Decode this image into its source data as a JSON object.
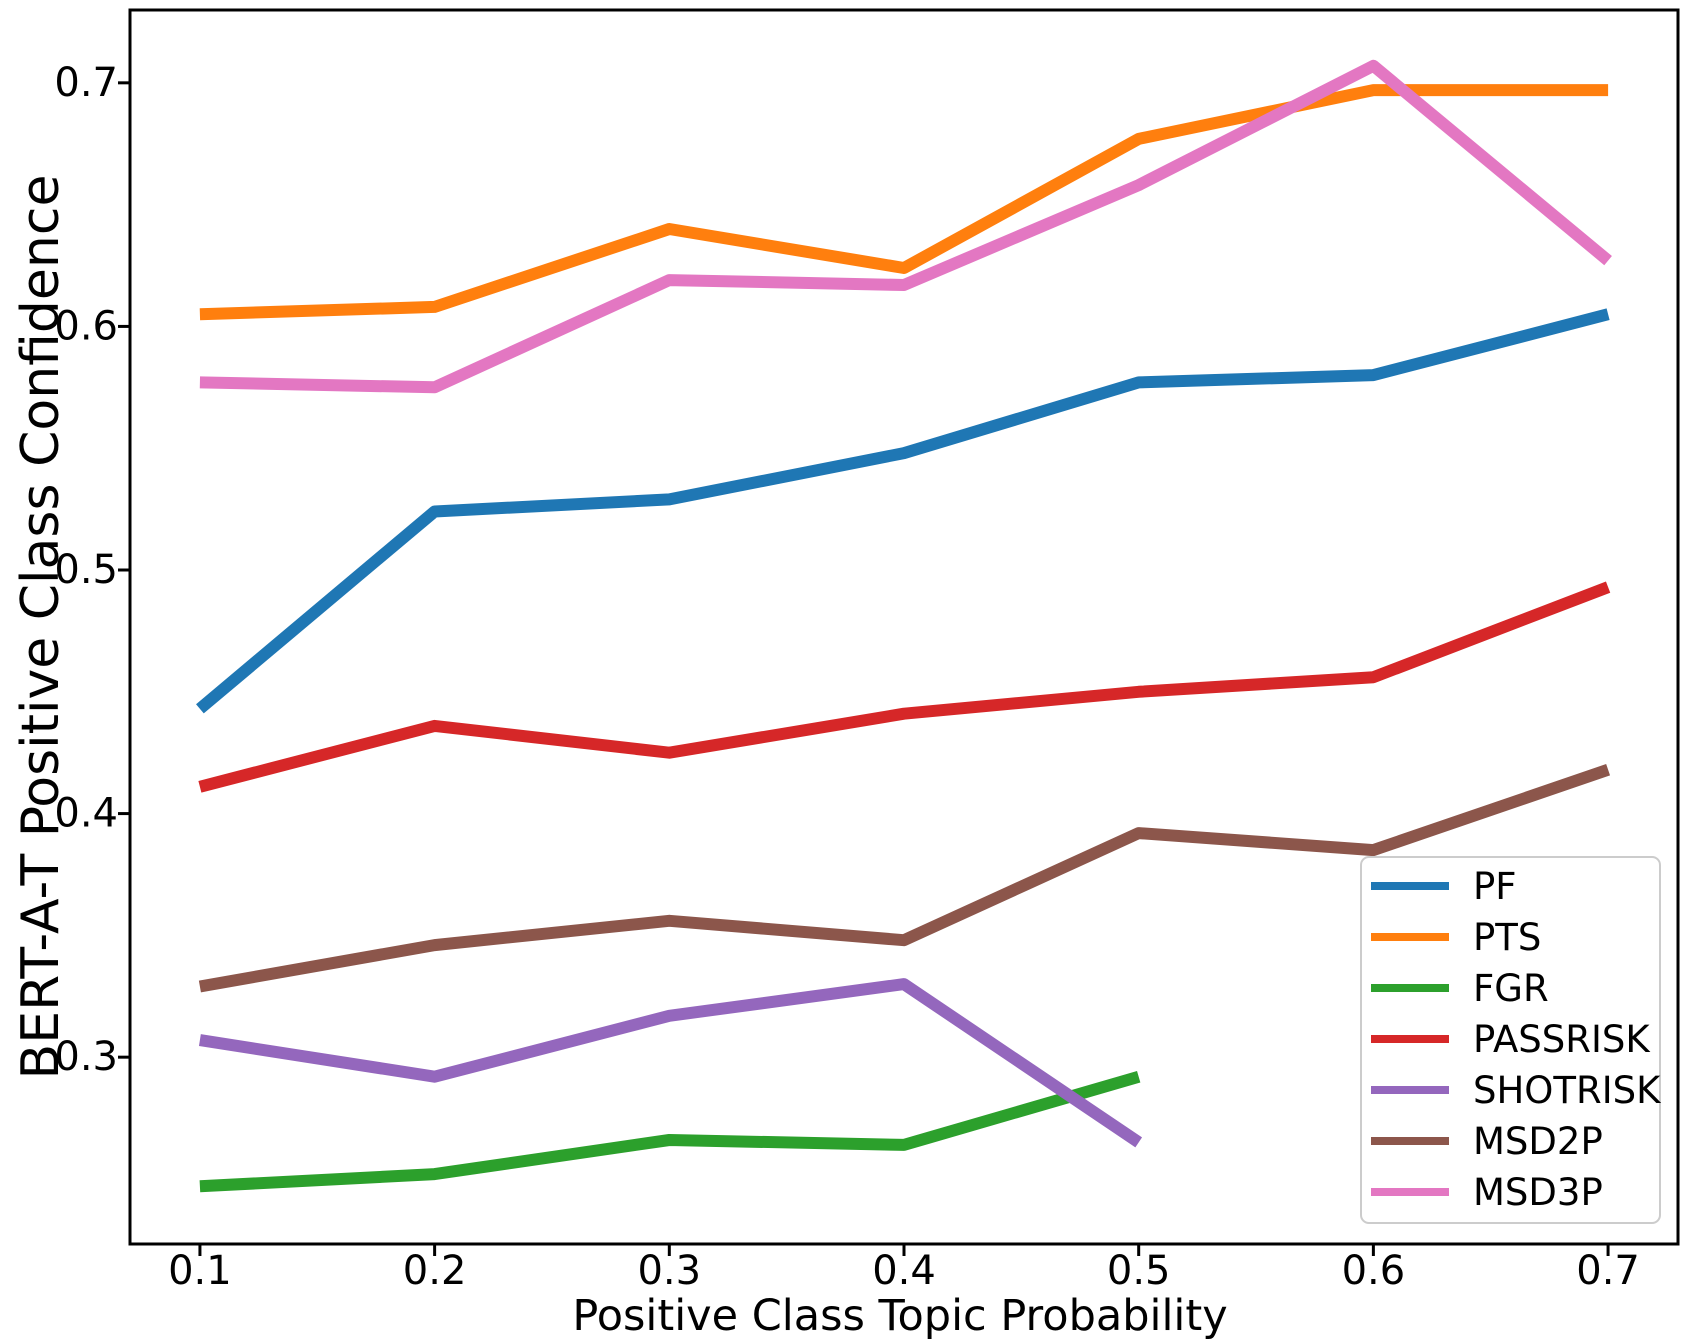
{
  "chart_data": {
    "type": "line",
    "title": "",
    "xlabel": "Positive Class Topic Probability",
    "ylabel": "BERT-A-T Positive Class Confidence",
    "xlim": [
      0.0702,
      0.7298
    ],
    "ylim": [
      0.2233,
      0.7299
    ],
    "grid": false,
    "legend_position": "lower right",
    "x_ticks": [
      0.1,
      0.2,
      0.3,
      0.4,
      0.5,
      0.6,
      0.7
    ],
    "x_tick_labels": [
      "0.1",
      "0.2",
      "0.3",
      "0.4",
      "0.5",
      "0.6",
      "0.7"
    ],
    "y_ticks": [
      0.3,
      0.4,
      0.5,
      0.6,
      0.7
    ],
    "y_tick_labels": [
      "0.3",
      "0.4",
      "0.5",
      "0.6",
      "0.7"
    ],
    "series": [
      {
        "name": "PF",
        "color": "#1f77b4",
        "x": [
          0.1,
          0.2,
          0.3,
          0.4,
          0.5,
          0.6,
          0.7
        ],
        "values": [
          0.443,
          0.524,
          0.529,
          0.548,
          0.577,
          0.58,
          0.605
        ]
      },
      {
        "name": "PTS",
        "color": "#ff7f0e",
        "x": [
          0.1,
          0.2,
          0.3,
          0.4,
          0.5,
          0.6,
          0.7
        ],
        "values": [
          0.605,
          0.608,
          0.64,
          0.624,
          0.677,
          0.697,
          0.697
        ]
      },
      {
        "name": "FGR",
        "color": "#2ca02c",
        "x": [
          0.1,
          0.2,
          0.3,
          0.4,
          0.5
        ],
        "values": [
          0.247,
          0.252,
          0.266,
          0.264,
          0.292
        ]
      },
      {
        "name": "PASSRISK",
        "color": "#d62728",
        "x": [
          0.1,
          0.2,
          0.3,
          0.4,
          0.5,
          0.6,
          0.7
        ],
        "values": [
          0.411,
          0.436,
          0.425,
          0.441,
          0.45,
          0.456,
          0.493
        ]
      },
      {
        "name": "SHOTRISK",
        "color": "#9467bd",
        "x": [
          0.1,
          0.2,
          0.3,
          0.4,
          0.5
        ],
        "values": [
          0.307,
          0.292,
          0.317,
          0.33,
          0.265
        ]
      },
      {
        "name": "MSD2P",
        "color": "#8c564b",
        "x": [
          0.1,
          0.2,
          0.3,
          0.4,
          0.5,
          0.6,
          0.7
        ],
        "values": [
          0.329,
          0.346,
          0.356,
          0.348,
          0.392,
          0.385,
          0.418
        ]
      },
      {
        "name": "MSD3P",
        "color": "#e377c2",
        "x": [
          0.1,
          0.2,
          0.3,
          0.4,
          0.5,
          0.6,
          0.7
        ],
        "values": [
          0.577,
          0.575,
          0.619,
          0.617,
          0.658,
          0.707,
          0.627
        ]
      }
    ],
    "line_width": 12,
    "legend_line_width": 8
  }
}
